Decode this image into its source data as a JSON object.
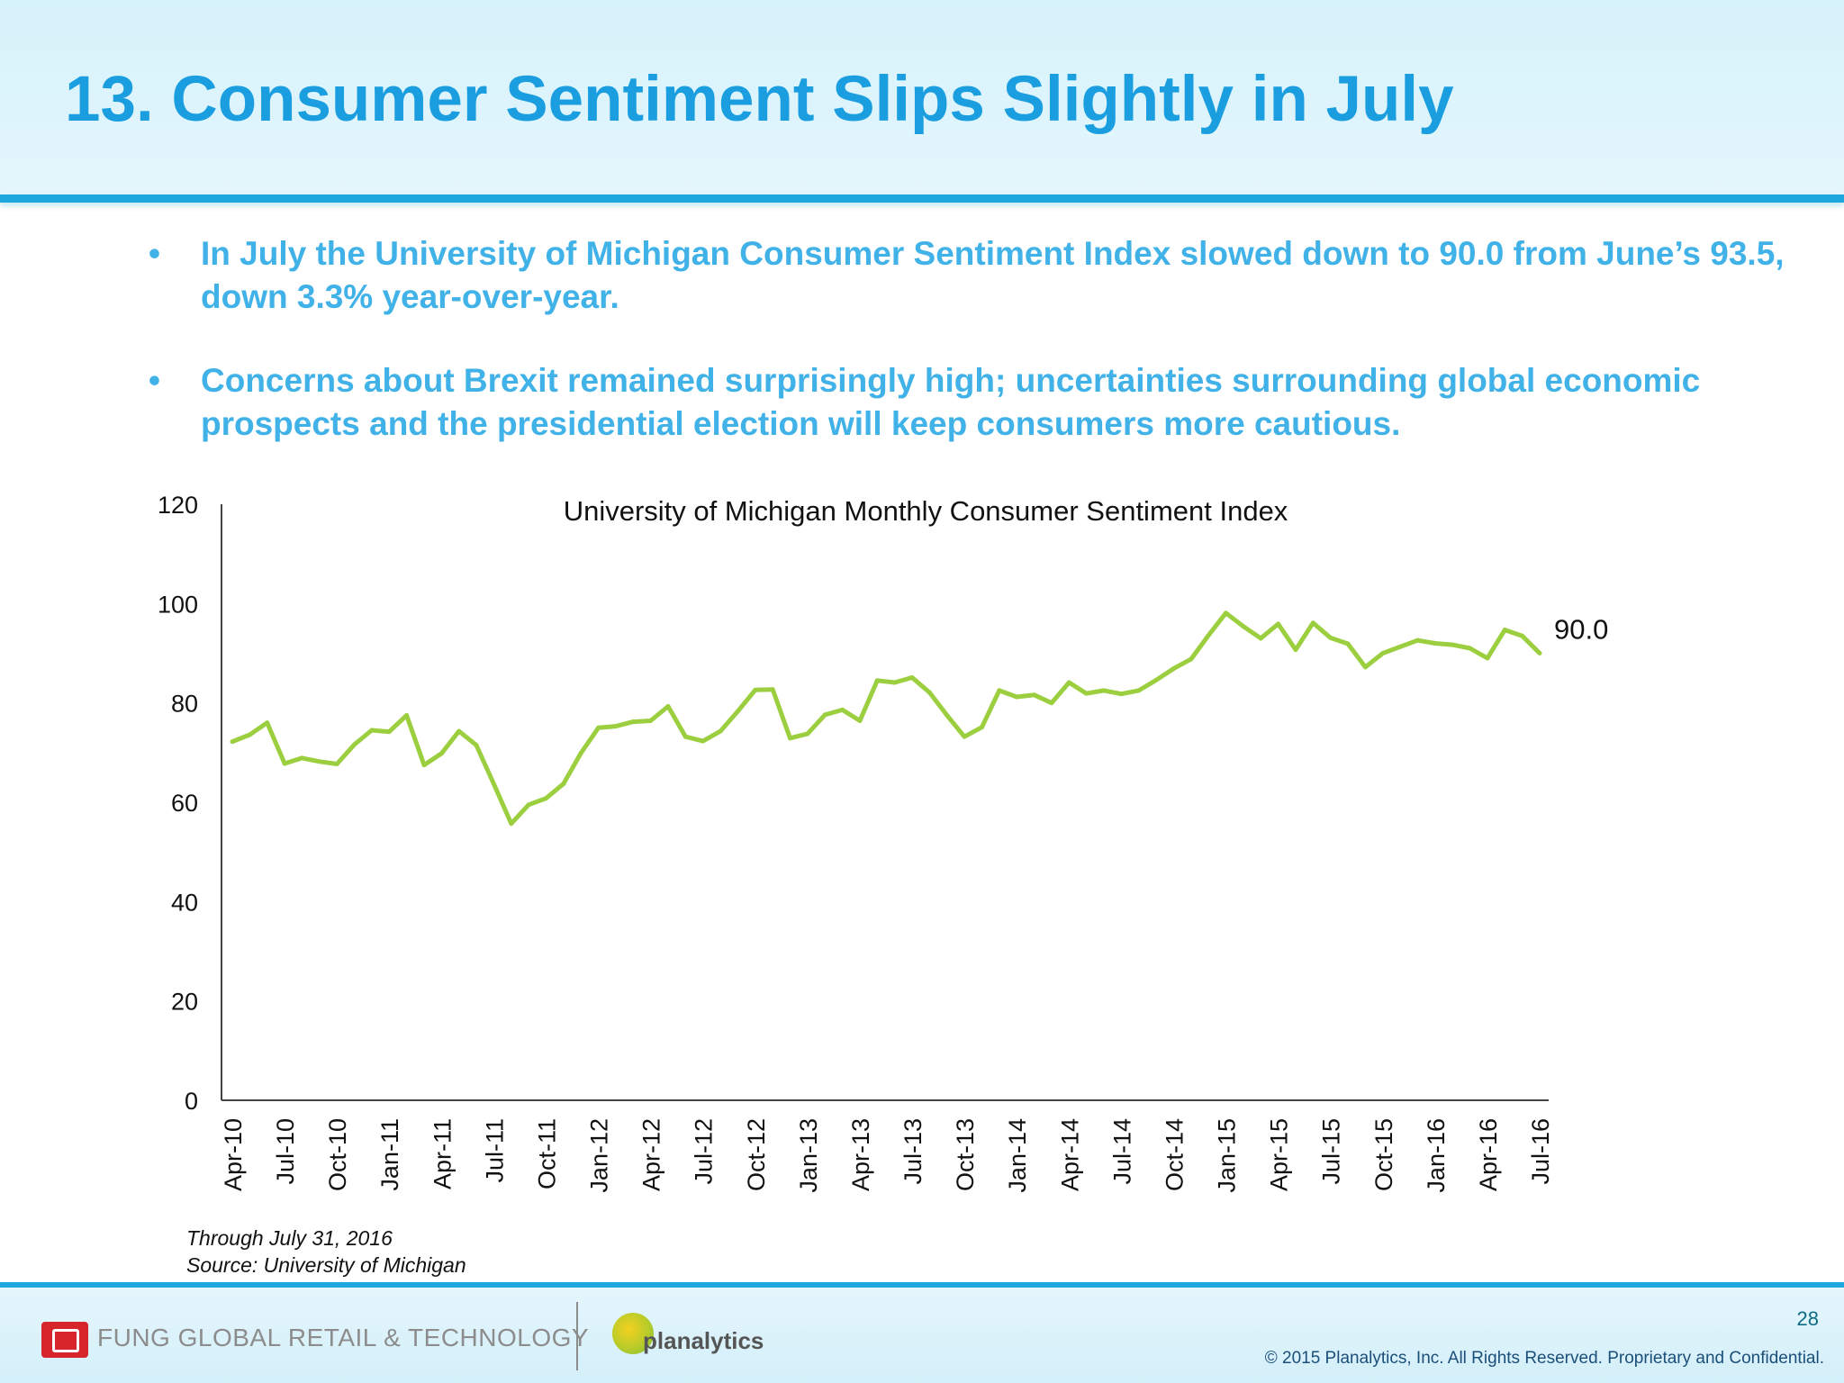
{
  "page": {
    "title": "13. Consumer Sentiment Slips Slightly in July",
    "bullets": [
      "In July the University of Michigan Consumer Sentiment Index slowed down to 90.0 from June’s 93.5, down 3.3% year-over-year.",
      "Concerns about Brexit remained surprisingly high; uncertainties surrounding global economic prospects and the presidential election will keep consumers more cautious."
    ],
    "bullet_symbol": "•",
    "notes": [
      "Through  July 31, 2016",
      "Source: University of Michigan"
    ],
    "footer": {
      "fung_text": "FUNG GLOBAL RETAIL & TECHNOLOGY",
      "planalytics_text": "planalytics",
      "page_number": "28",
      "copyright": "© 2015 Planalytics, Inc. All Rights Reserved. Proprietary and Confidential."
    },
    "colors": {
      "title": "#1a9ee0",
      "bullet": "#40b2e8",
      "line": "#9ccf3f",
      "accent": "#1ea7de"
    }
  },
  "chart_data": {
    "type": "line",
    "title": "University of Michigan Monthly Consumer Sentiment Index",
    "xlabel": "",
    "ylabel": "",
    "ylim": [
      0,
      120
    ],
    "yticks": [
      0,
      20,
      40,
      60,
      80,
      100,
      120
    ],
    "grid": false,
    "legend": "none",
    "x": [
      "Apr-10",
      "May-10",
      "Jun-10",
      "Jul-10",
      "Aug-10",
      "Sep-10",
      "Oct-10",
      "Nov-10",
      "Dec-10",
      "Jan-11",
      "Feb-11",
      "Mar-11",
      "Apr-11",
      "May-11",
      "Jun-11",
      "Jul-11",
      "Aug-11",
      "Sep-11",
      "Oct-11",
      "Nov-11",
      "Dec-11",
      "Jan-12",
      "Feb-12",
      "Mar-12",
      "Apr-12",
      "May-12",
      "Jun-12",
      "Jul-12",
      "Aug-12",
      "Sep-12",
      "Oct-12",
      "Nov-12",
      "Dec-12",
      "Jan-13",
      "Feb-13",
      "Mar-13",
      "Apr-13",
      "May-13",
      "Jun-13",
      "Jul-13",
      "Aug-13",
      "Sep-13",
      "Oct-13",
      "Nov-13",
      "Dec-13",
      "Jan-14",
      "Feb-14",
      "Mar-14",
      "Apr-14",
      "May-14",
      "Jun-14",
      "Jul-14",
      "Aug-14",
      "Sep-14",
      "Oct-14",
      "Nov-14",
      "Dec-14",
      "Jan-15",
      "Feb-15",
      "Mar-15",
      "Apr-15",
      "May-15",
      "Jun-15",
      "Jul-15",
      "Aug-15",
      "Sep-15",
      "Oct-15",
      "Nov-15",
      "Dec-15",
      "Jan-16",
      "Feb-16",
      "Mar-16",
      "Apr-16",
      "May-16",
      "Jun-16",
      "Jul-16"
    ],
    "tick_labels": [
      "Apr-10",
      "Jul-10",
      "Oct-10",
      "Jan-11",
      "Apr-11",
      "Jul-11",
      "Oct-11",
      "Jan-12",
      "Apr-12",
      "Jul-12",
      "Oct-12",
      "Jan-13",
      "Apr-13",
      "Jul-13",
      "Oct-13",
      "Jan-14",
      "Apr-14",
      "Jul-14",
      "Oct-14",
      "Jan-15",
      "Apr-15",
      "Jul-15",
      "Oct-15",
      "Jan-16",
      "Apr-16",
      "Jul-16"
    ],
    "series": [
      {
        "name": "Consumer Sentiment Index",
        "values": [
          72.2,
          73.6,
          76.0,
          67.8,
          68.9,
          68.2,
          67.7,
          71.6,
          74.5,
          74.2,
          77.5,
          67.5,
          69.8,
          74.3,
          71.5,
          63.7,
          55.7,
          59.5,
          60.8,
          63.7,
          69.9,
          75.0,
          75.3,
          76.2,
          76.4,
          79.3,
          73.2,
          72.3,
          74.3,
          78.3,
          82.6,
          82.7,
          72.9,
          73.8,
          77.6,
          78.6,
          76.4,
          84.5,
          84.1,
          85.1,
          82.1,
          77.5,
          73.2,
          75.1,
          82.5,
          81.2,
          81.6,
          80.0,
          84.1,
          81.9,
          82.5,
          81.8,
          82.5,
          84.6,
          86.9,
          88.8,
          93.6,
          98.1,
          95.4,
          93.0,
          95.9,
          90.7,
          96.1,
          93.1,
          91.9,
          87.2,
          90.0,
          91.3,
          92.6,
          92.0,
          91.7,
          91.0,
          89.0,
          94.7,
          93.5,
          90.0
        ]
      }
    ],
    "annotations": [
      {
        "text": "90.0",
        "point": "Jul-16"
      }
    ]
  }
}
